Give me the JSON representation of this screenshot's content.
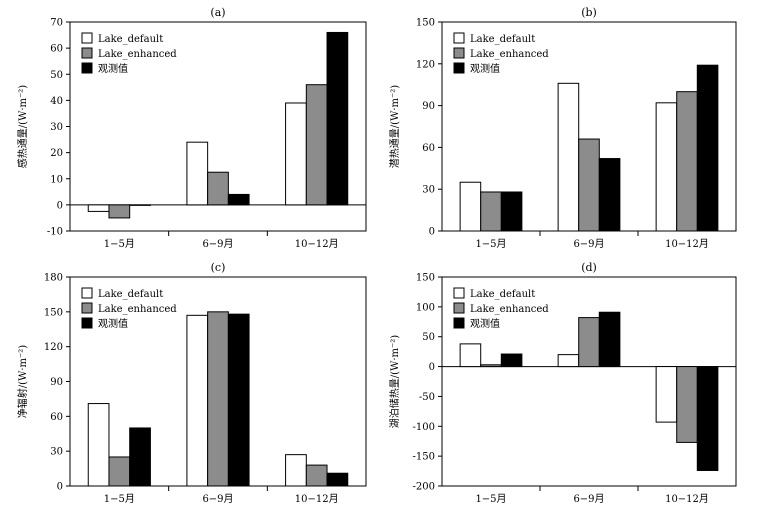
{
  "series_colors": [
    "#ffffff",
    "#8c8c8c",
    "#000000"
  ],
  "chart_data": [
    {
      "type": "bar",
      "title": "(a)",
      "ylabel": "感热通量/(W·m⁻²)",
      "categories": [
        "1−5月",
        "6−9月",
        "10−12月"
      ],
      "ylim": [
        -10,
        70
      ],
      "yticks": [
        -10,
        0,
        10,
        20,
        30,
        40,
        50,
        60,
        70
      ],
      "legend": "top-left",
      "series": [
        {
          "name": "Lake_default",
          "values": [
            -2.5,
            24,
            39
          ]
        },
        {
          "name": "Lake_enhanced",
          "values": [
            -5,
            12.5,
            46
          ]
        },
        {
          "name": "观测值",
          "values": [
            0,
            4,
            66
          ]
        }
      ]
    },
    {
      "type": "bar",
      "title": "(b)",
      "ylabel": "潜热通量/(W·m⁻²)",
      "categories": [
        "1−5月",
        "6−9月",
        "10−12月"
      ],
      "ylim": [
        0,
        150
      ],
      "yticks": [
        0,
        30,
        60,
        90,
        120,
        150
      ],
      "legend": "top-left",
      "series": [
        {
          "name": "Lake_default",
          "values": [
            35,
            106,
            92
          ]
        },
        {
          "name": "Lake_enhanced",
          "values": [
            28,
            66,
            100
          ]
        },
        {
          "name": "观测值",
          "values": [
            28,
            52,
            119
          ]
        }
      ]
    },
    {
      "type": "bar",
      "title": "(c)",
      "ylabel": "净辐射/(W·m⁻²)",
      "categories": [
        "1−5月",
        "6−9月",
        "10−12月"
      ],
      "ylim": [
        0,
        180
      ],
      "yticks": [
        0,
        30,
        60,
        90,
        120,
        150,
        180
      ],
      "legend": "top-left",
      "series": [
        {
          "name": "Lake_default",
          "values": [
            71,
            147,
            27
          ]
        },
        {
          "name": "Lake_enhanced",
          "values": [
            25,
            150,
            18
          ]
        },
        {
          "name": "观测值",
          "values": [
            50,
            148,
            11
          ]
        }
      ]
    },
    {
      "type": "bar",
      "title": "(d)",
      "ylabel": "湖泊储热量/(W·m⁻²)",
      "categories": [
        "1−5月",
        "6−9月",
        "10−12月"
      ],
      "ylim": [
        -200,
        150
      ],
      "yticks": [
        -200,
        -150,
        -100,
        -50,
        0,
        50,
        100,
        150
      ],
      "legend": "top-left",
      "series": [
        {
          "name": "Lake_default",
          "values": [
            38,
            20,
            -93
          ]
        },
        {
          "name": "Lake_enhanced",
          "values": [
            3,
            82,
            -127
          ]
        },
        {
          "name": "观测值",
          "values": [
            21,
            91,
            -174
          ]
        }
      ]
    }
  ]
}
